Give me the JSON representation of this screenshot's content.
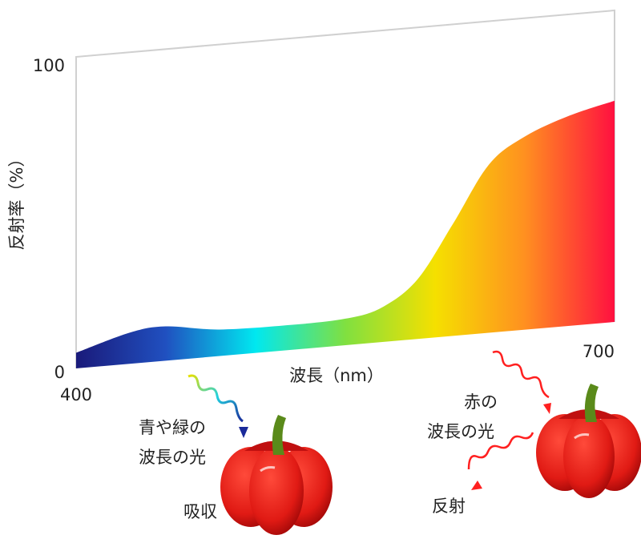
{
  "chart_data": {
    "type": "area",
    "ylabel": "反射率（%）",
    "xlabel": "波長（nm）",
    "x": [
      400,
      430,
      450,
      480,
      520,
      550,
      570,
      590,
      610,
      630,
      650,
      675,
      700
    ],
    "values": [
      5,
      10,
      11,
      8.5,
      8,
      8.5,
      11,
      19,
      36,
      54,
      62,
      67.5,
      71
    ],
    "colors": [
      "#1a1a7a",
      "#2050c0",
      "#00e8f0",
      "#80e040",
      "#f5e000",
      "#ff9020",
      "#ff1040"
    ],
    "xlim": [
      400,
      700
    ],
    "ylim": [
      0,
      100
    ],
    "xticks": [
      400,
      700
    ],
    "yticks": [
      0,
      100
    ],
    "annotations": [
      "青や緑の",
      "波長の光",
      "吸収",
      "赤の",
      "波長の光",
      "反射"
    ]
  }
}
